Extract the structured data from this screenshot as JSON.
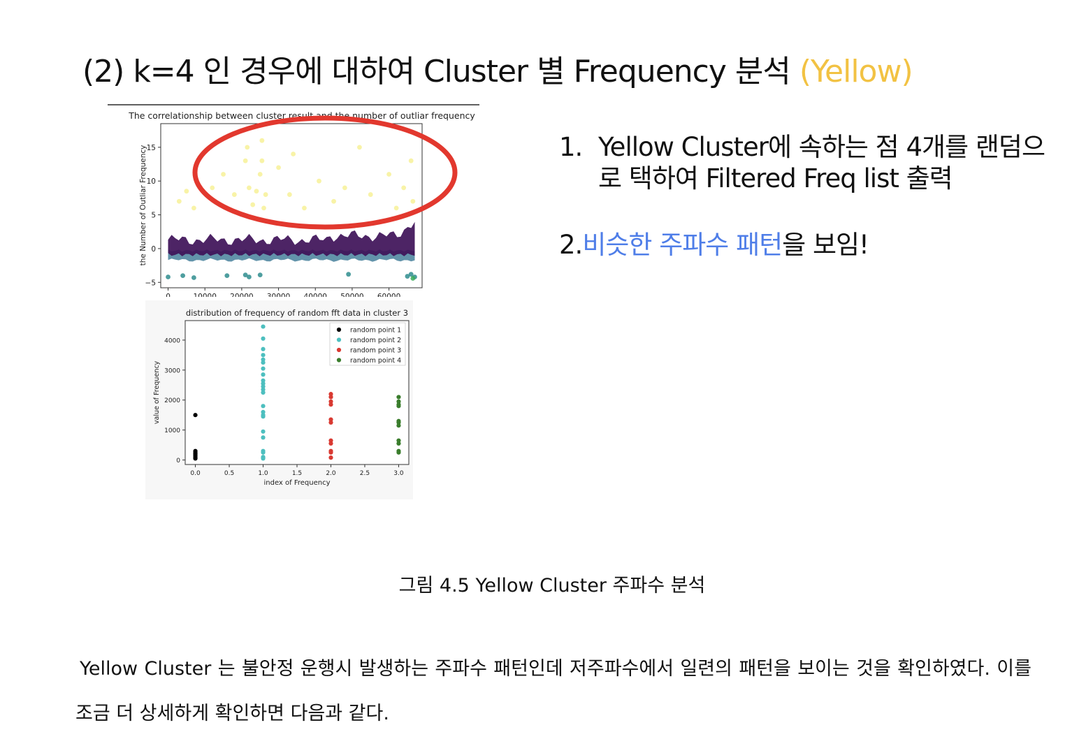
{
  "slide": {
    "title_main": "(2) k=4 인 경우에 대하여 Cluster 별 Frequency 분석 ",
    "title_accent": "(Yellow)",
    "accent_color": "#f2c243"
  },
  "points": [
    {
      "num": "1.",
      "text": "Yellow Cluster에 속하는 점 4개를 랜덤으로 택하여 Filtered Freq list 출력"
    },
    {
      "num": "2.",
      "highlight": "비슷한 주파수 패턴",
      "rest": "을 보임!",
      "highlight_color": "#4f7ee8"
    }
  ],
  "caption": "그림 4.5 Yellow Cluster 주파수 분석",
  "body_text": "Yellow Cluster 는 불안정 운행시 발생하는 주파수 패턴인데 저주파수에서 일련의 패턴을 보이는 것을 확인하였다. 이를 조금 더 상세하게 확인하면 다음과 같다.",
  "chart_data": [
    {
      "type": "scatter",
      "title": "The correlationship between cluster result and the number of outliar frequency",
      "ylabel": "the Number of Outliar Frequency",
      "xlabel": "",
      "xlim": [
        -2000,
        69000
      ],
      "ylim": [
        -5.8,
        18.5
      ],
      "x_ticks": [
        0,
        10000,
        20000,
        30000,
        40000,
        50000,
        60000
      ],
      "y_ticks": [
        -5,
        0,
        5,
        10,
        15
      ],
      "annotation": "red ellipse circling the yellow cluster points",
      "series": [
        {
          "color": "#f5ef8a",
          "points": [
            [
              3000,
              7
            ],
            [
              5000,
              8.5
            ],
            [
              7000,
              6
            ],
            [
              12000,
              9
            ],
            [
              15000,
              11
            ],
            [
              18000,
              8
            ],
            [
              21000,
              13
            ],
            [
              22000,
              9
            ],
            [
              23000,
              6.5
            ],
            [
              24000,
              8.5
            ],
            [
              21500,
              15
            ],
            [
              25500,
              16
            ],
            [
              25000,
              11
            ],
            [
              25500,
              13
            ],
            [
              26000,
              6
            ],
            [
              26500,
              8
            ],
            [
              30000,
              12
            ],
            [
              33000,
              8
            ],
            [
              34000,
              14
            ],
            [
              41000,
              10
            ],
            [
              45000,
              7
            ],
            [
              48000,
              9
            ],
            [
              52000,
              15
            ],
            [
              55000,
              8
            ],
            [
              60000,
              11
            ],
            [
              64000,
              9
            ],
            [
              66000,
              13
            ],
            [
              66500,
              7
            ],
            [
              62000,
              6
            ],
            [
              37000,
              6
            ]
          ]
        },
        {
          "color": "#2f8d8e",
          "points": [
            [
              0,
              -4.2
            ],
            [
              4000,
              -4
            ],
            [
              7000,
              -4.3
            ],
            [
              16000,
              -4
            ],
            [
              21000,
              -3.9
            ],
            [
              22000,
              -4.2
            ],
            [
              25000,
              -3.9
            ],
            [
              49000,
              -3.8
            ],
            [
              65000,
              -4.1
            ],
            [
              66000,
              -3.8
            ],
            [
              67000,
              -4.2
            ]
          ]
        },
        {
          "color": "#3bab5a",
          "points": [
            [
              66500,
              -4.4
            ]
          ]
        }
      ]
    },
    {
      "type": "scatter",
      "title": "distribution of frequency of random fft data in cluster 3",
      "xlabel": "index of Frequency",
      "ylabel": "value of Frequency",
      "xlim": [
        -0.15,
        3.15
      ],
      "ylim": [
        -150,
        4650
      ],
      "x_ticks": [
        0.0,
        0.5,
        1.0,
        1.5,
        2.0,
        2.5,
        3.0
      ],
      "y_ticks": [
        0,
        1000,
        2000,
        3000,
        4000
      ],
      "legend": "top-right",
      "series": [
        {
          "name": "random point 1",
          "color": "#000000",
          "x": [
            0,
            0,
            0,
            0,
            0,
            0,
            0
          ],
          "y": [
            1500,
            300,
            250,
            200,
            150,
            100,
            50
          ]
        },
        {
          "name": "random point 2",
          "color": "#4dbfbf",
          "x": [
            1,
            1,
            1,
            1,
            1,
            1,
            1,
            1,
            1,
            1,
            1,
            1,
            1,
            1,
            1,
            1,
            1,
            1,
            1,
            1,
            1,
            1,
            1,
            1
          ],
          "y": [
            4450,
            4050,
            3700,
            3500,
            3350,
            3250,
            3050,
            2850,
            2650,
            2550,
            2450,
            2350,
            2250,
            1800,
            1600,
            1500,
            1450,
            950,
            750,
            300,
            250,
            100,
            80,
            50
          ]
        },
        {
          "name": "random point 3",
          "color": "#d93a32",
          "x": [
            2,
            2,
            2,
            2,
            2,
            2,
            2,
            2,
            2,
            2,
            2
          ],
          "y": [
            2200,
            2100,
            1950,
            1850,
            1350,
            1250,
            650,
            550,
            300,
            250,
            80
          ]
        },
        {
          "name": "random point 4",
          "color": "#3a7d2c",
          "x": [
            3,
            3,
            3,
            3,
            3,
            3,
            3,
            3,
            3,
            3,
            3
          ],
          "y": [
            2100,
            1950,
            1850,
            1800,
            1300,
            1250,
            1150,
            650,
            550,
            300,
            250
          ]
        }
      ]
    }
  ]
}
